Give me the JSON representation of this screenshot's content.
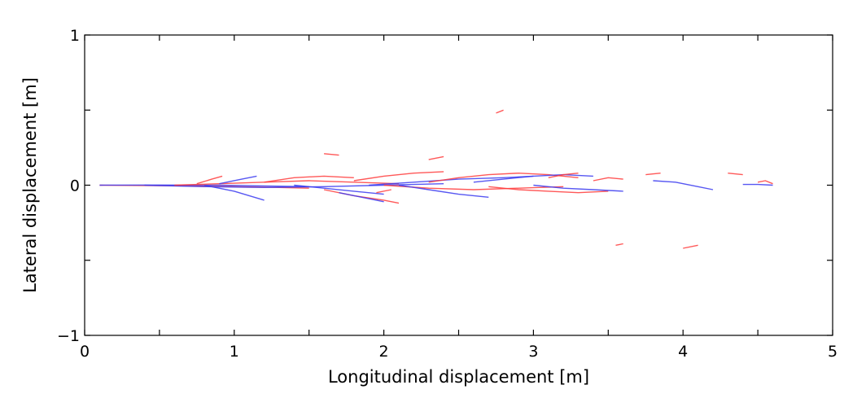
{
  "chart_data": {
    "type": "line",
    "title": "",
    "xlabel": "Longitudinal displacement  [m]",
    "ylabel": "Lateral displacement  [m]",
    "xlim": [
      0,
      5
    ],
    "ylim": [
      -1,
      1
    ],
    "xticks": [
      0,
      1,
      2,
      3,
      4,
      5
    ],
    "yticks": [
      -1,
      0,
      1
    ],
    "xtick_labels": [
      "0",
      "1",
      "2",
      "3",
      "4",
      "5"
    ],
    "ytick_labels": [
      "−1",
      "0",
      "1"
    ],
    "grid": false,
    "legend": "none",
    "colors": {
      "red": "#ff3b3b",
      "blue": "#3a3af0"
    },
    "series": [
      {
        "color": "red",
        "x": [
          0.1,
          0.4,
          0.7,
          1.0,
          1.3,
          1.5
        ],
        "y": [
          0.0,
          -0.002,
          -0.005,
          -0.01,
          -0.015,
          -0.02
        ]
      },
      {
        "color": "blue",
        "x": [
          0.1,
          0.5,
          0.9,
          1.2,
          1.5
        ],
        "y": [
          0.0,
          0.001,
          0.0,
          -0.005,
          -0.01
        ]
      },
      {
        "color": "blue",
        "x": [
          0.4,
          0.8,
          1.2,
          1.6,
          2.0,
          2.4
        ],
        "y": [
          0.0,
          -0.01,
          -0.015,
          -0.01,
          0.0,
          0.01
        ]
      },
      {
        "color": "red",
        "x": [
          0.6,
          0.9,
          1.2,
          1.5,
          1.8,
          2.1
        ],
        "y": [
          0.0,
          0.01,
          0.02,
          0.03,
          0.02,
          0.01
        ]
      },
      {
        "color": "blue",
        "x": [
          0.8,
          1.0,
          1.1,
          1.2
        ],
        "y": [
          0.0,
          -0.04,
          -0.07,
          -0.1
        ]
      },
      {
        "color": "red",
        "x": [
          0.75,
          0.85,
          0.92
        ],
        "y": [
          0.01,
          0.04,
          0.06
        ]
      },
      {
        "color": "blue",
        "x": [
          0.9,
          1.05,
          1.15
        ],
        "y": [
          0.01,
          0.04,
          0.06
        ]
      },
      {
        "color": "red",
        "x": [
          1.2,
          1.4,
          1.6,
          1.8
        ],
        "y": [
          0.02,
          0.05,
          0.06,
          0.05
        ]
      },
      {
        "color": "blue",
        "x": [
          1.4,
          1.6,
          1.8,
          2.0
        ],
        "y": [
          0.0,
          -0.02,
          -0.04,
          -0.06
        ]
      },
      {
        "color": "red",
        "x": [
          1.6,
          1.8,
          2.0,
          2.1
        ],
        "y": [
          -0.03,
          -0.07,
          -0.1,
          -0.12
        ]
      },
      {
        "color": "blue",
        "x": [
          1.7,
          1.9,
          2.0
        ],
        "y": [
          -0.05,
          -0.09,
          -0.11
        ]
      },
      {
        "color": "red",
        "x": [
          1.8,
          2.0,
          2.2,
          2.4
        ],
        "y": [
          0.03,
          0.06,
          0.08,
          0.09
        ]
      },
      {
        "color": "blue",
        "x": [
          1.9,
          2.2,
          2.5,
          2.8,
          3.0
        ],
        "y": [
          0.0,
          0.02,
          0.04,
          0.05,
          0.06
        ]
      },
      {
        "color": "red",
        "x": [
          2.0,
          2.3,
          2.6,
          2.9,
          3.2
        ],
        "y": [
          0.0,
          -0.02,
          -0.03,
          -0.02,
          -0.01
        ]
      },
      {
        "color": "blue",
        "x": [
          2.1,
          2.3,
          2.5,
          2.7
        ],
        "y": [
          0.0,
          -0.03,
          -0.06,
          -0.08
        ]
      },
      {
        "color": "red",
        "x": [
          2.3,
          2.5,
          2.7,
          2.9,
          3.1,
          3.3
        ],
        "y": [
          0.02,
          0.05,
          0.07,
          0.08,
          0.07,
          0.05
        ]
      },
      {
        "color": "blue",
        "x": [
          2.6,
          2.8,
          3.0,
          3.2,
          3.4
        ],
        "y": [
          0.02,
          0.04,
          0.06,
          0.07,
          0.06
        ]
      },
      {
        "color": "red",
        "x": [
          2.7,
          2.9,
          3.1,
          3.3,
          3.5
        ],
        "y": [
          -0.01,
          -0.03,
          -0.04,
          -0.05,
          -0.04
        ]
      },
      {
        "color": "blue",
        "x": [
          3.0,
          3.2,
          3.4,
          3.6
        ],
        "y": [
          0.0,
          -0.02,
          -0.03,
          -0.04
        ]
      },
      {
        "color": "red",
        "x": [
          3.1,
          3.2,
          3.3
        ],
        "y": [
          0.05,
          0.07,
          0.08
        ]
      },
      {
        "color": "red",
        "x": [
          3.4,
          3.5,
          3.6
        ],
        "y": [
          0.03,
          0.05,
          0.04
        ]
      },
      {
        "color": "blue",
        "x": [
          3.8,
          3.95,
          4.1,
          4.2
        ],
        "y": [
          0.03,
          0.02,
          -0.01,
          -0.03
        ]
      },
      {
        "color": "blue",
        "x": [
          4.4,
          4.5,
          4.6
        ],
        "y": [
          0.005,
          0.005,
          0.0
        ]
      },
      {
        "color": "red",
        "x": [
          4.5,
          4.55,
          4.6
        ],
        "y": [
          0.02,
          0.03,
          0.01
        ]
      },
      {
        "color": "red",
        "x": [
          4.3,
          4.4
        ],
        "y": [
          0.08,
          0.07
        ]
      },
      {
        "color": "red",
        "x": [
          3.75,
          3.85
        ],
        "y": [
          0.07,
          0.08
        ]
      },
      {
        "color": "red",
        "x": [
          4.0,
          4.1
        ],
        "y": [
          -0.42,
          -0.4
        ]
      },
      {
        "color": "red",
        "x": [
          3.55,
          3.6
        ],
        "y": [
          -0.4,
          -0.39
        ]
      },
      {
        "color": "red",
        "x": [
          2.3,
          2.4
        ],
        "y": [
          0.17,
          0.19
        ]
      },
      {
        "color": "red",
        "x": [
          1.6,
          1.7
        ],
        "y": [
          0.21,
          0.2
        ]
      },
      {
        "color": "red",
        "x": [
          2.75,
          2.8
        ],
        "y": [
          0.48,
          0.5
        ]
      },
      {
        "color": "red",
        "x": [
          1.95,
          2.05
        ],
        "y": [
          -0.05,
          -0.03
        ]
      }
    ]
  }
}
